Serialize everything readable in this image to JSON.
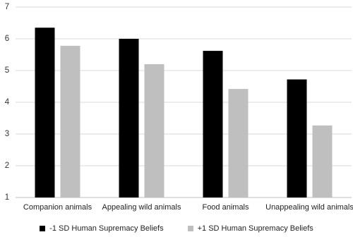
{
  "chart_data": {
    "type": "bar",
    "categories": [
      "Companion animals",
      "Appealing wild animals",
      "Food animals",
      "Unappealing wild animals"
    ],
    "series": [
      {
        "name": "-1 SD Human Supremacy Beliefs",
        "color": "#000000",
        "values": [
          6.35,
          6.0,
          5.62,
          4.72
        ]
      },
      {
        "name": "+1 SD Human Supremacy Beliefs",
        "color": "#bfbfbf",
        "values": [
          5.78,
          5.2,
          4.42,
          3.27
        ]
      }
    ],
    "ylim": [
      1,
      7
    ],
    "yticks": [
      1,
      2,
      3,
      4,
      5,
      6,
      7
    ],
    "grid": true
  }
}
